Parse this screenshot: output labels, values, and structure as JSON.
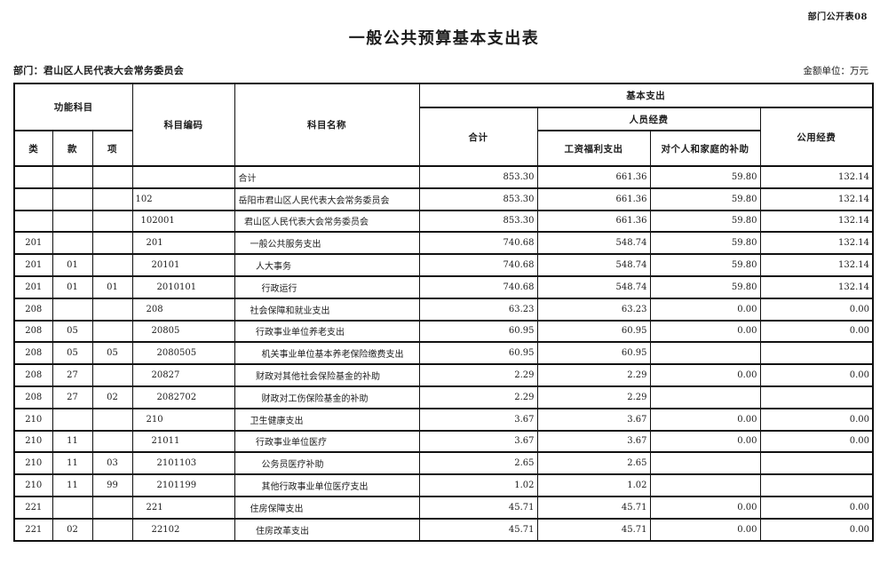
{
  "page": {
    "doc_label": "部门公开表08",
    "title": "一般公共预算基本支出表",
    "department_label": "部门：君山区人民代表大会常务委员会",
    "unit_label": "金额单位：万元"
  },
  "table": {
    "headers": {
      "func_subject": "功能科目",
      "class": "类",
      "section": "款",
      "item": "项",
      "subject_code": "科目编码",
      "subject_name": "科目名称",
      "basic_expenditure": "基本支出",
      "total": "合计",
      "personnel": "人员经费",
      "salary_welfare": "工资福利支出",
      "individual_family": "对个人和家庭的补助",
      "public_funds": "公用经费"
    },
    "rows": [
      {
        "class": "",
        "section": "",
        "item": "",
        "code": "",
        "name": "合计",
        "level": 0,
        "total": "853.30",
        "salary": "661.36",
        "family": "59.80",
        "public": "132.14"
      },
      {
        "class": "",
        "section": "",
        "item": "",
        "code": "102",
        "name": "岳阳市君山区人民代表大会常务委员会",
        "level": 0,
        "total": "853.30",
        "salary": "661.36",
        "family": "59.80",
        "public": "132.14"
      },
      {
        "class": "",
        "section": "",
        "item": "",
        "code": "102001",
        "name": "君山区人民代表大会常务委员会",
        "level": 1,
        "total": "853.30",
        "salary": "661.36",
        "family": "59.80",
        "public": "132.14"
      },
      {
        "class": "201",
        "section": "",
        "item": "",
        "code": "201",
        "name": "一般公共服务支出",
        "level": 2,
        "total": "740.68",
        "salary": "548.74",
        "family": "59.80",
        "public": "132.14"
      },
      {
        "class": "201",
        "section": "01",
        "item": "",
        "code": "20101",
        "name": "人大事务",
        "level": 3,
        "total": "740.68",
        "salary": "548.74",
        "family": "59.80",
        "public": "132.14"
      },
      {
        "class": "201",
        "section": "01",
        "item": "01",
        "code": "2010101",
        "name": "行政运行",
        "level": 4,
        "total": "740.68",
        "salary": "548.74",
        "family": "59.80",
        "public": "132.14"
      },
      {
        "class": "208",
        "section": "",
        "item": "",
        "code": "208",
        "name": "社会保障和就业支出",
        "level": 2,
        "total": "63.23",
        "salary": "63.23",
        "family": "0.00",
        "public": "0.00"
      },
      {
        "class": "208",
        "section": "05",
        "item": "",
        "code": "20805",
        "name": "行政事业单位养老支出",
        "level": 3,
        "total": "60.95",
        "salary": "60.95",
        "family": "0.00",
        "public": "0.00"
      },
      {
        "class": "208",
        "section": "05",
        "item": "05",
        "code": "2080505",
        "name": "机关事业单位基本养老保险缴费支出",
        "level": 4,
        "total": "60.95",
        "salary": "60.95",
        "family": "",
        "public": ""
      },
      {
        "class": "208",
        "section": "27",
        "item": "",
        "code": "20827",
        "name": "财政对其他社会保险基金的补助",
        "level": 3,
        "total": "2.29",
        "salary": "2.29",
        "family": "0.00",
        "public": "0.00"
      },
      {
        "class": "208",
        "section": "27",
        "item": "02",
        "code": "2082702",
        "name": "财政对工伤保险基金的补助",
        "level": 4,
        "total": "2.29",
        "salary": "2.29",
        "family": "",
        "public": ""
      },
      {
        "class": "210",
        "section": "",
        "item": "",
        "code": "210",
        "name": "卫生健康支出",
        "level": 2,
        "total": "3.67",
        "salary": "3.67",
        "family": "0.00",
        "public": "0.00"
      },
      {
        "class": "210",
        "section": "11",
        "item": "",
        "code": "21011",
        "name": "行政事业单位医疗",
        "level": 3,
        "total": "3.67",
        "salary": "3.67",
        "family": "0.00",
        "public": "0.00"
      },
      {
        "class": "210",
        "section": "11",
        "item": "03",
        "code": "2101103",
        "name": "公务员医疗补助",
        "level": 4,
        "total": "2.65",
        "salary": "2.65",
        "family": "",
        "public": ""
      },
      {
        "class": "210",
        "section": "11",
        "item": "99",
        "code": "2101199",
        "name": "其他行政事业单位医疗支出",
        "level": 4,
        "total": "1.02",
        "salary": "1.02",
        "family": "",
        "public": ""
      },
      {
        "class": "221",
        "section": "",
        "item": "",
        "code": "221",
        "name": "住房保障支出",
        "level": 2,
        "total": "45.71",
        "salary": "45.71",
        "family": "0.00",
        "public": "0.00"
      },
      {
        "class": "221",
        "section": "02",
        "item": "",
        "code": "22102",
        "name": "住房改革支出",
        "level": 3,
        "total": "45.71",
        "salary": "45.71",
        "family": "0.00",
        "public": "0.00"
      }
    ]
  }
}
